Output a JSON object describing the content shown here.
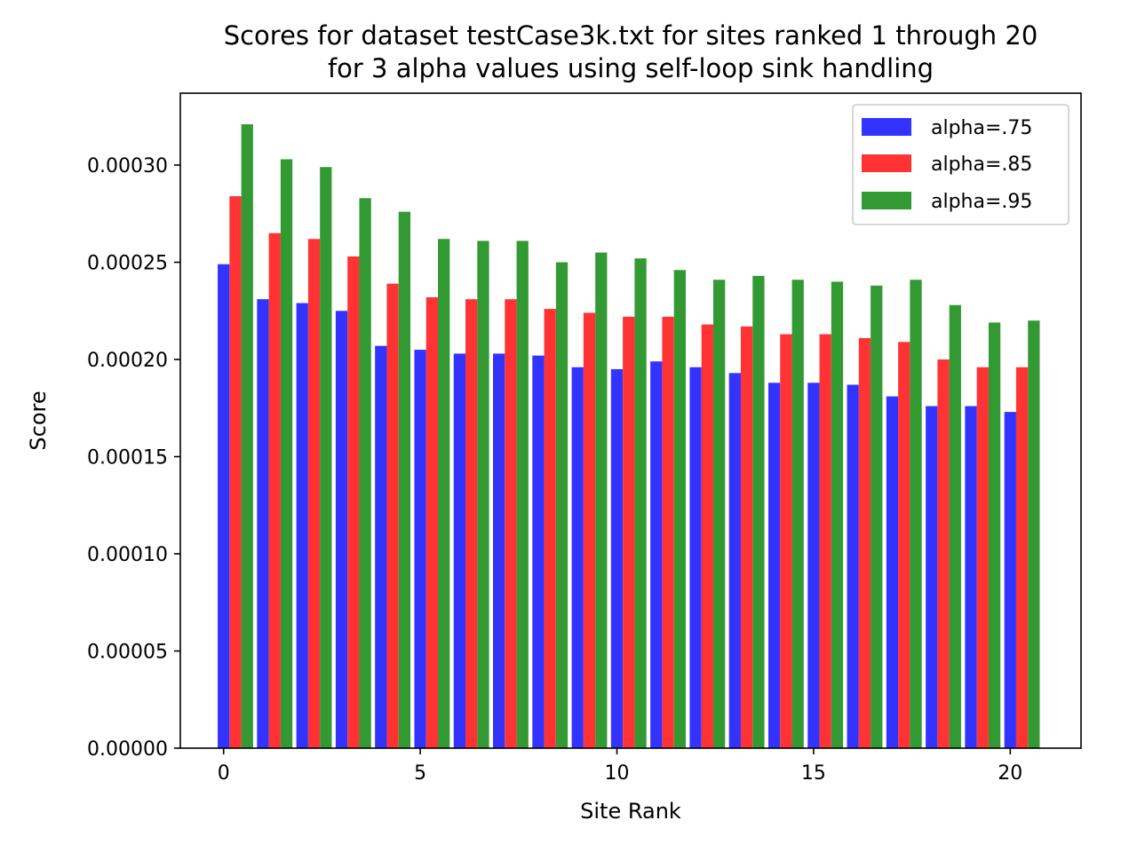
{
  "chart_data": {
    "type": "bar",
    "title": "Scores for dataset testCase3k.txt for sites ranked 1 through 20",
    "subtitle": "for 3 alpha values using self-loop sink handling",
    "xlabel": "Site Rank",
    "ylabel": "Score",
    "xlim": [
      -1.1,
      21.8
    ],
    "ylim": [
      0,
      0.000337
    ],
    "xticks": [
      0,
      5,
      10,
      15,
      20
    ],
    "xtick_labels": [
      "0",
      "5",
      "10",
      "15",
      "20"
    ],
    "yticks": [
      0,
      5e-05,
      0.0001,
      0.00015,
      0.0002,
      0.00025,
      0.0003
    ],
    "ytick_labels": [
      "0.00000",
      "0.00005",
      "0.00010",
      "0.00015",
      "0.00020",
      "0.00025",
      "0.00030"
    ],
    "legend_position": "top-right",
    "bar_width": 0.3,
    "categories": [
      0,
      1,
      2,
      3,
      4,
      5,
      6,
      7,
      8,
      9,
      10,
      11,
      12,
      13,
      14,
      15,
      16,
      17,
      18,
      19,
      20
    ],
    "series": [
      {
        "name": "alpha=.75",
        "color": "#3333ff",
        "values": [
          0.000249,
          0.000231,
          0.000229,
          0.000225,
          0.000207,
          0.000205,
          0.000203,
          0.000203,
          0.000202,
          0.000196,
          0.000195,
          0.000199,
          0.000196,
          0.000193,
          0.000188,
          0.000188,
          0.000187,
          0.000181,
          0.000176,
          0.000176,
          0.000173
        ]
      },
      {
        "name": "alpha=.85",
        "color": "#ff3333",
        "values": [
          0.000284,
          0.000265,
          0.000262,
          0.000253,
          0.000239,
          0.000232,
          0.000231,
          0.000231,
          0.000226,
          0.000224,
          0.000222,
          0.000222,
          0.000218,
          0.000217,
          0.000213,
          0.000213,
          0.000211,
          0.000209,
          0.0002,
          0.000196,
          0.000196
        ]
      },
      {
        "name": "alpha=.95",
        "color": "#339933",
        "values": [
          0.000321,
          0.000303,
          0.000299,
          0.000283,
          0.000276,
          0.000262,
          0.000261,
          0.000261,
          0.00025,
          0.000255,
          0.000252,
          0.000246,
          0.000241,
          0.000243,
          0.000241,
          0.00024,
          0.000238,
          0.000241,
          0.000228,
          0.000219,
          0.00022
        ]
      }
    ]
  }
}
